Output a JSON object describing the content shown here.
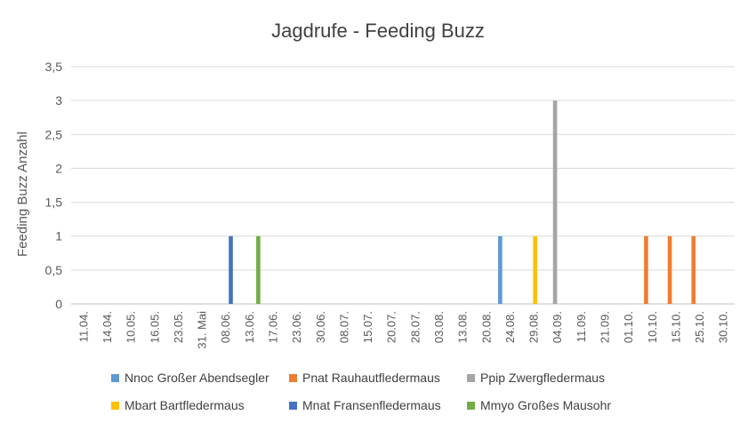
{
  "chart_data": {
    "type": "bar",
    "title": "Jagdrufe - Feeding Buzz",
    "ylabel": "Feeding Buzz Anzahl",
    "xlabel": "",
    "ylim": [
      0,
      3.5
    ],
    "y_ticks": [
      "0",
      "0,5",
      "1",
      "1,5",
      "2",
      "2,5",
      "3",
      "3,5"
    ],
    "grid": true,
    "legend_position": "bottom",
    "categories": [
      "11.04.",
      "14.04.",
      "10.05.",
      "16.05.",
      "23.05.",
      "31. Mai",
      "08.06.",
      "13.06.",
      "17.06.",
      "23.06.",
      "30.06.",
      "08.07.",
      "15.07.",
      "20.07.",
      "28.07.",
      "03.08.",
      "13.08.",
      "20.08.",
      "24.08.",
      "29.08.",
      "04.09.",
      "11.09.",
      "21.09.",
      "01.10.",
      "10.10.",
      "15.10.",
      "25.10.",
      "30.10."
    ],
    "series": [
      {
        "name": "Nnoc Großer Abendsegler",
        "color": "#5B9BD5",
        "points": [
          {
            "x": "24.08.",
            "y": 1
          }
        ]
      },
      {
        "name": "Pnat Rauhautfledermaus",
        "color": "#ED7D31",
        "points": [
          {
            "x": "10.10.",
            "y": 1
          },
          {
            "x": "15.10.",
            "y": 1
          },
          {
            "x": "25.10.",
            "y": 1
          }
        ]
      },
      {
        "name": "Ppip Zwergfledermaus",
        "color": "#A5A5A5",
        "points": [
          {
            "x": "04.09.",
            "y": 3
          }
        ]
      },
      {
        "name": "Mbart Bartfledermaus",
        "color": "#FFC000",
        "points": [
          {
            "x": "29.08.",
            "y": 1
          }
        ]
      },
      {
        "name": "Mnat Fransenfledermaus",
        "color": "#4472C4",
        "points": [
          {
            "x": "08.06.",
            "y": 1
          }
        ]
      },
      {
        "name": "Mmyo Großes Mausohr",
        "color": "#70AD47",
        "points": [
          {
            "x": "13.06.",
            "y": 1
          }
        ]
      }
    ]
  }
}
